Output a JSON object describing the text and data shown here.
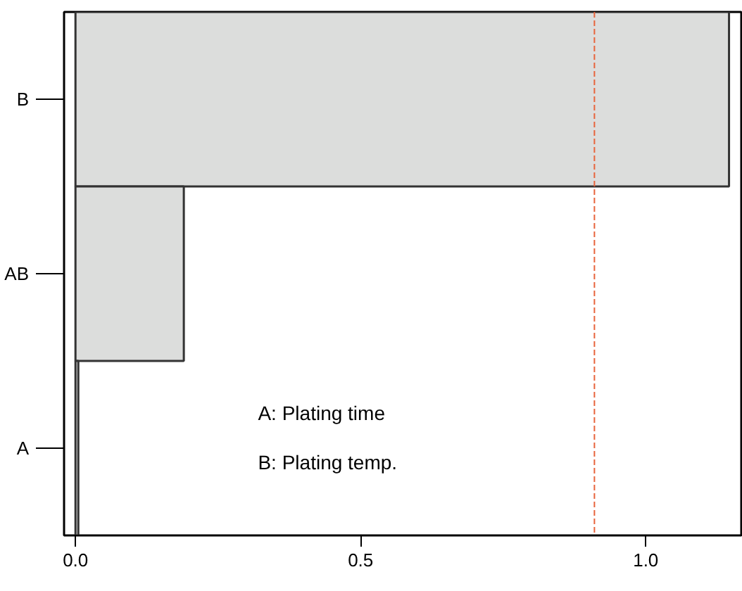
{
  "chart_data": {
    "type": "bar",
    "orientation": "horizontal",
    "categories": [
      "B",
      "AB",
      "A"
    ],
    "values": [
      1.146,
      0.19,
      0.005
    ],
    "color": "#dcdddc",
    "xlim": [
      -0.02,
      1.17
    ],
    "xticks": [
      {
        "value": 0,
        "label": "0.0"
      },
      0.5,
      {
        "value": 1,
        "label": "1.0"
      }
    ],
    "grid": false,
    "ref_lines": [
      {
        "axis": "x",
        "value": 0.91,
        "color": "#e8643c",
        "line_style": "dashed"
      }
    ],
    "annotations": [
      "A: Plating time",
      "B: Plating temp."
    ]
  }
}
